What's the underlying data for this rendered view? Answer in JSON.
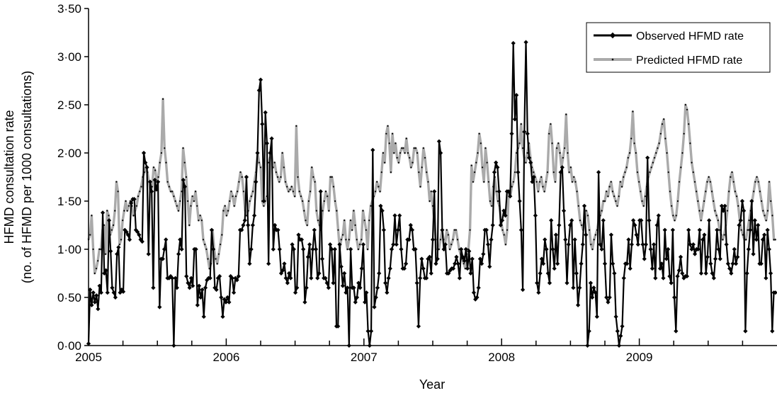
{
  "chart_data": {
    "type": "line",
    "title": "",
    "xlabel": "Year",
    "ylabel": "HFMD consultation rate",
    "ylabel_sub": "(no. of HFMD per 1000 consultations)",
    "xlim": [
      2005,
      2010
    ],
    "ylim": [
      0,
      3.5
    ],
    "x_ticks": [
      2005,
      2006,
      2007,
      2008,
      2009
    ],
    "x_tick_labels": [
      "2005",
      "2006",
      "2007",
      "2008",
      "2009"
    ],
    "y_ticks": [
      0,
      0.5,
      1,
      1.5,
      2,
      2.5,
      3,
      3.5
    ],
    "y_tick_labels": [
      "0·00",
      "0·50",
      "1·00",
      "1·50",
      "2·00",
      "2·50",
      "3·00",
      "3·50"
    ],
    "legend_position": "top-right",
    "grid": false,
    "series": [
      {
        "name": "Observed HFMD rate",
        "color": "#000000",
        "values": [
          0.02,
          0.58,
          0.42,
          0.55,
          0.45,
          0.52,
          0.38,
          0.62,
          0.55,
          1.38,
          0.75,
          0.78,
          0.55,
          1.3,
          0.98,
          0.6,
          0.55,
          0.5,
          0.95,
          1.02,
          0.55,
          0.58,
          0.56,
          1.2,
          1.18,
          1.15,
          1.1,
          1.48,
          1.52,
          1.52,
          1.2,
          1.18,
          1.15,
          1.1,
          1.08,
          2.0,
          1.9,
          1.85,
          0.95,
          1.7,
          1.6,
          0.6,
          1.72,
          1.62,
          1.7,
          0.4,
          0.9,
          0.9,
          1.0,
          1.1,
          0.7,
          0.7,
          0.72,
          0.7,
          0.0,
          0.7,
          0.6,
          0.95,
          1.1,
          1.0,
          1.72,
          1.65,
          0.72,
          0.65,
          0.6,
          0.7,
          0.62,
          1.0,
          1.0,
          0.42,
          0.62,
          0.5,
          0.58,
          0.3,
          0.6,
          0.68,
          0.7,
          0.7,
          1.2,
          1.0,
          0.6,
          0.58,
          0.7,
          0.72,
          0.5,
          0.3,
          0.48,
          0.45,
          0.5,
          0.45,
          0.72,
          0.7,
          0.55,
          0.7,
          0.68,
          0.72,
          1.2,
          1.2,
          1.25,
          1.3,
          1.75,
          1.25,
          0.85,
          1.0,
          1.25,
          1.35,
          1.7,
          2.0,
          2.65,
          2.76,
          2.3,
          1.5,
          2.42,
          2.1,
          0.85,
          2.0,
          2.15,
          1.0,
          1.25,
          1.2,
          1.2,
          1.0,
          0.75,
          0.78,
          0.85,
          0.7,
          0.65,
          0.75,
          0.7,
          1.05,
          1.0,
          0.55,
          0.6,
          1.15,
          1.1,
          1.1,
          1.0,
          0.45,
          0.6,
          0.92,
          1.05,
          0.7,
          1.0,
          1.2,
          1.0,
          0.7,
          0.75,
          1.6,
          0.9,
          0.7,
          0.7,
          0.65,
          0.6,
          1.05,
          1.0,
          0.65,
          1.0,
          0.2,
          0.2,
          1.05,
          0.82,
          0.62,
          0.75,
          0.55,
          0.6,
          0.0,
          1.0,
          0.6,
          0.6,
          0.45,
          0.5,
          0.65,
          0.6,
          0.8,
          1.05,
          0.45,
          0.55,
          0.15,
          0.0,
          0.15,
          2.03,
          0.4,
          0.5,
          0.6,
          0.75,
          1.45,
          1.4,
          1.2,
          0.65,
          0.55,
          0.7,
          0.8,
          1.0,
          1.05,
          1.35,
          1.05,
          1.2,
          1.35,
          1.0,
          0.8,
          0.8,
          0.85,
          1.1,
          1.1,
          1.25,
          1.2,
          1.0,
          1.0,
          0.65,
          0.2,
          0.7,
          0.9,
          0.8,
          0.7,
          0.7,
          0.9,
          0.92,
          0.75,
          1.1,
          1.6,
          0.85,
          0.9,
          2.12,
          2.0,
          1.2,
          1.0,
          1.05,
          0.75,
          0.75,
          0.78,
          0.8,
          0.8,
          0.85,
          0.92,
          0.85,
          0.7,
          1.0,
          0.92,
          0.88,
          1.0,
          0.8,
          0.98,
          0.75,
          0.9,
          0.55,
          0.48,
          0.5,
          0.6,
          0.9,
          0.85,
          0.95,
          1.2,
          1.2,
          1.05,
          0.82,
          1.1,
          1.25,
          1.8,
          1.9,
          1.85,
          1.6,
          1.25,
          1.3,
          1.4,
          1.35,
          1.6,
          1.6,
          1.55,
          2.2,
          3.14,
          2.35,
          2.6,
          1.8,
          1.5,
          1.2,
          0.58,
          2.22,
          3.15,
          2.2,
          1.95,
          1.9,
          1.7,
          1.75,
          1.35,
          0.65,
          0.55,
          0.75,
          0.9,
          0.85,
          1.1,
          1.0,
          0.75,
          0.65,
          1.3,
          1.0,
          0.8,
          1.15,
          0.85,
          1.25,
          1.8,
          1.85,
          1.4,
          1.1,
          0.65,
          1.05,
          1.25,
          1.3,
          0.6,
          1.1,
          0.75,
          0.42,
          0.6,
          0.85,
          1.05,
          1.45,
          1.15,
          0.0,
          0.15,
          0.65,
          0.5,
          0.6,
          0.55,
          0.3,
          1.8,
          1.05,
          1.0,
          1.3,
          0.85,
          0.5,
          0.45,
          0.5,
          1.15,
          0.85,
          0.75,
          0.3,
          0.15,
          0.0,
          0.1,
          0.2,
          0.7,
          0.85,
          0.85,
          1.1,
          0.8,
          1.05,
          1.3,
          1.25,
          1.15,
          1.05,
          1.3,
          1.3,
          1.05,
          0.9,
          1.05,
          1.95,
          1.3,
          1.0,
          0.8,
          1.05,
          0.7,
          1.25,
          1.35,
          0.8,
          0.85,
          0.7,
          1.2,
          0.9,
          1.0,
          0.72,
          0.65,
          1.2,
          0.5,
          0.15,
          0.72,
          0.78,
          0.92,
          0.75,
          0.7,
          0.72,
          0.72,
          1.2,
          1.05,
          1.0,
          1.05,
          0.95,
          1.0,
          1.0,
          1.2,
          0.75,
          1.1,
          1.15,
          0.75,
          0.92,
          1.3,
          0.85,
          0.75,
          0.7,
          0.9,
          1.2,
          1.0,
          0.9,
          1.45,
          1.4,
          1.45,
          1.05,
          0.85,
          0.8,
          0.75,
          0.85,
          1.0,
          0.85,
          0.92,
          1.25,
          1.3,
          1.5,
          1.4,
          0.15,
          0.75,
          1.0,
          1.2,
          1.5,
          0.95,
          1.3,
          1.1,
          1.25,
          0.85,
          0.85,
          1.1,
          1.15,
          0.7,
          1.2,
          1.0,
          0.75,
          0.15,
          0.55,
          0.55
        ]
      },
      {
        "name": "Predicted HFMD rate",
        "color": "#aaaaaa",
        "values": [
          1.1,
          1.15,
          1.35,
          1.0,
          0.75,
          0.8,
          0.88,
          1.0,
          1.0,
          1.2,
          1.25,
          0.95,
          1.4,
          1.35,
          1.15,
          1.2,
          1.25,
          1.4,
          1.7,
          1.6,
          1.05,
          1.1,
          1.3,
          1.4,
          1.5,
          1.4,
          1.45,
          1.5,
          1.45,
          1.35,
          1.4,
          1.45,
          1.55,
          1.6,
          1.65,
          1.75,
          1.8,
          1.85,
          1.8,
          1.7,
          1.6,
          1.65,
          1.85,
          1.82,
          1.7,
          1.75,
          1.9,
          2.0,
          2.56,
          2.05,
          1.9,
          1.7,
          1.65,
          1.6,
          1.6,
          1.55,
          1.5,
          1.45,
          1.4,
          1.5,
          1.6,
          2.05,
          1.9,
          1.75,
          1.5,
          1.25,
          1.45,
          1.55,
          1.5,
          1.6,
          1.45,
          1.3,
          1.35,
          1.3,
          1.1,
          1.05,
          1.0,
          0.9,
          0.8,
          0.85,
          1.2,
          1.0,
          0.9,
          0.85,
          0.95,
          1.05,
          1.15,
          1.4,
          1.45,
          1.35,
          1.4,
          1.5,
          1.6,
          1.55,
          1.45,
          1.55,
          1.6,
          1.7,
          1.8,
          1.75,
          1.6,
          1.4,
          1.35,
          1.4,
          1.5,
          1.55,
          1.6,
          1.7,
          1.8,
          2.0,
          1.9,
          1.85,
          1.5,
          1.45,
          1.5,
          1.55,
          1.9,
          1.95,
          2.0,
          1.85,
          1.9,
          1.8,
          1.75,
          1.7,
          1.75,
          2.0,
          1.85,
          1.7,
          1.65,
          1.6,
          1.62,
          1.65,
          1.6,
          1.55,
          2.28,
          1.75,
          1.6,
          1.55,
          1.5,
          1.4,
          1.3,
          1.25,
          1.5,
          1.6,
          1.85,
          1.75,
          1.7,
          1.4,
          1.3,
          1.25,
          1.2,
          1.4,
          1.5,
          1.6,
          1.55,
          1.4,
          1.75,
          1.75,
          1.65,
          1.5,
          1.4,
          1.2,
          1.0,
          1.1,
          1.15,
          1.3,
          1.1,
          1.0,
          1.1,
          1.3,
          1.2,
          1.4,
          1.25,
          1.1,
          1.0,
          1.05,
          1.1,
          1.4,
          1.3,
          1.2,
          1.0,
          1.3,
          1.45,
          1.5,
          1.55,
          1.6,
          1.7,
          1.65,
          1.6,
          1.8,
          2.0,
          1.9,
          2.2,
          2.28,
          2.1,
          1.8,
          2.2,
          2.0,
          2.1,
          1.95,
          1.9,
          2.0,
          2.05,
          2.05,
          2.0,
          2.15,
          2.0,
          1.95,
          1.85,
          1.9,
          2.05,
          2.05,
          2.0,
          1.8,
          1.65,
          1.85,
          2.05,
          1.95,
          1.8,
          1.7,
          1.5,
          1.6,
          1.45,
          1.3,
          1.1,
          1.0,
          1.0,
          1.1,
          1.2,
          1.1,
          1.05,
          1.2,
          1.15,
          1.0,
          1.05,
          1.1,
          1.2,
          1.2,
          1.1,
          1.0,
          0.95,
          0.9,
          0.85,
          0.8,
          0.95,
          1.0,
          1.2,
          1.87,
          1.7,
          1.8,
          1.9,
          2.0,
          2.2,
          2.1,
          1.85,
          1.7,
          2.05,
          1.9,
          1.7,
          1.5,
          1.45,
          1.65,
          1.75,
          1.6,
          1.5,
          1.45,
          1.3,
          1.2,
          1.15,
          1.05,
          1.2,
          1.6,
          1.55,
          1.65,
          1.7,
          1.8,
          2.0,
          2.05,
          2.1,
          2.3,
          2.05,
          1.95,
          1.9,
          2.0,
          2.1,
          1.95,
          1.85,
          1.8,
          1.75,
          1.7,
          1.6,
          1.7,
          1.75,
          1.65,
          1.6,
          1.7,
          1.8,
          2.2,
          2.3,
          2.1,
          1.8,
          1.7,
          2.05,
          2.1,
          2.0,
          1.85,
          1.95,
          2.05,
          2.4,
          2.0,
          1.8,
          1.85,
          1.7,
          1.75,
          1.7,
          1.6,
          1.45,
          1.3,
          1.25,
          1.2,
          1.3,
          1.4,
          1.35,
          1.2,
          1.05,
          1.0,
          1.1,
          1.15,
          1.2,
          1.3,
          1.35,
          1.4,
          1.5,
          1.5,
          1.6,
          1.55,
          1.65,
          1.7,
          1.6,
          1.55,
          1.5,
          1.45,
          1.55,
          1.7,
          1.65,
          1.75,
          1.8,
          1.85,
          1.95,
          2.0,
          2.15,
          2.43,
          2.1,
          2.0,
          1.8,
          1.7,
          1.6,
          1.5,
          1.45,
          1.55,
          1.65,
          1.75,
          1.8,
          1.85,
          1.9,
          1.95,
          2.0,
          2.05,
          2.1,
          2.2,
          2.3,
          2.35,
          2.15,
          2.0,
          1.8,
          1.6,
          1.45,
          1.35,
          1.3,
          1.35,
          1.5,
          1.7,
          1.85,
          2.0,
          2.2,
          2.5,
          2.45,
          2.3,
          2.1,
          1.9,
          1.8,
          1.7,
          1.6,
          1.5,
          1.4,
          1.3,
          1.4,
          1.5,
          1.6,
          1.7,
          1.75,
          1.7,
          1.6,
          1.5,
          1.4,
          1.35,
          1.3,
          1.2,
          1.15,
          1.1,
          1.15,
          1.25,
          1.4,
          1.6,
          1.75,
          1.8,
          1.7,
          1.6,
          1.55,
          1.45,
          1.3,
          1.2,
          1.15,
          1.1,
          1.1,
          1.2,
          1.3,
          1.4,
          1.5,
          1.6,
          1.7,
          1.75,
          1.7,
          1.6,
          1.5,
          1.4,
          1.35,
          1.3,
          1.4,
          1.7,
          1.5,
          1.35,
          1.1,
          1.1
        ]
      }
    ]
  }
}
